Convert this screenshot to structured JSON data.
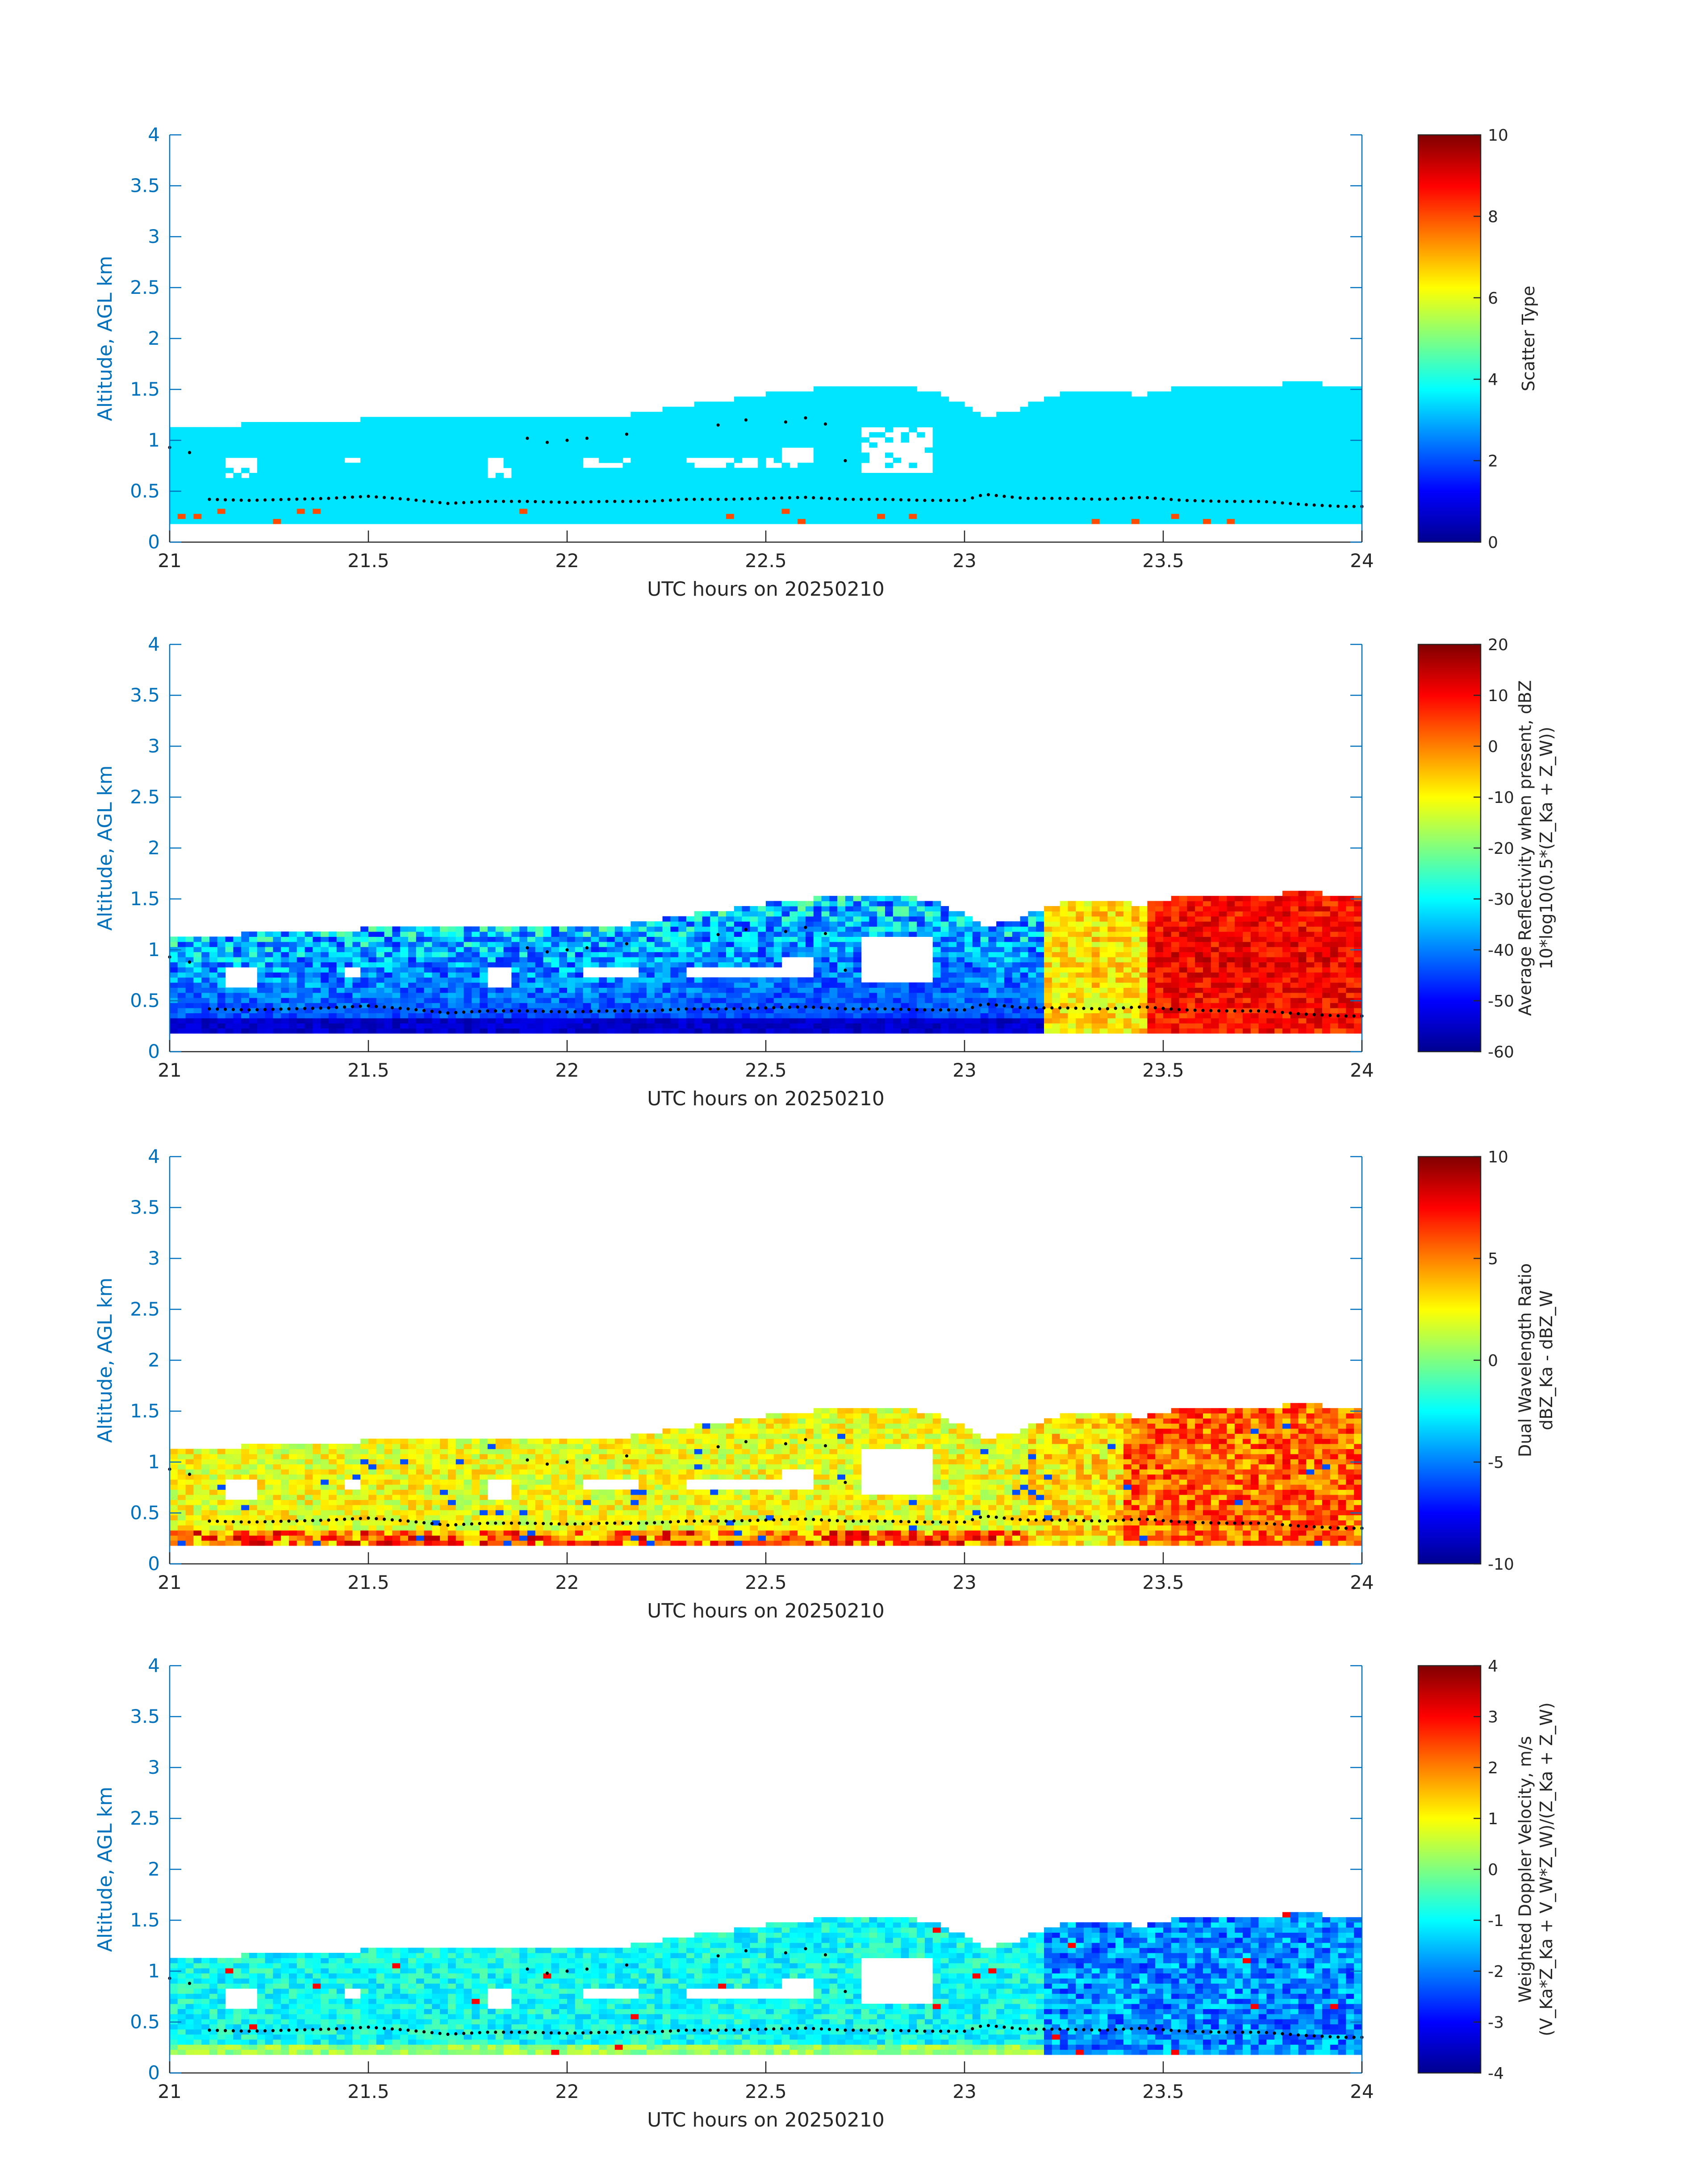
{
  "chart_data": [
    {
      "type": "heatmap",
      "field": "scatter_type",
      "xlabel": "UTC hours on 20250210",
      "ylabel": "Altitude, AGL km",
      "xlim": [
        21,
        24
      ],
      "ylim": [
        0,
        4
      ],
      "xticks": [
        "21",
        "21.5",
        "22",
        "22.5",
        "23",
        "23.5",
        "24"
      ],
      "yticks": [
        "0",
        "0.5",
        "1",
        "1.5",
        "2",
        "2.5",
        "3",
        "3.5",
        "4"
      ],
      "colorbar": {
        "label_lines": [
          "Scatter Type"
        ],
        "range": [
          0,
          10
        ],
        "ticks": [
          "0",
          "2",
          "4",
          "6",
          "8",
          "10"
        ]
      },
      "dominant_value": 3.5
    },
    {
      "type": "heatmap",
      "field": "reflectivity",
      "xlabel": "UTC hours on 20250210",
      "ylabel": "Altitude, AGL km",
      "xlim": [
        21,
        24
      ],
      "ylim": [
        0,
        4
      ],
      "xticks": [
        "21",
        "21.5",
        "22",
        "22.5",
        "23",
        "23.5",
        "24"
      ],
      "yticks": [
        "0",
        "0.5",
        "1",
        "1.5",
        "2",
        "2.5",
        "3",
        "3.5",
        "4"
      ],
      "colorbar": {
        "label_lines": [
          "Average Reflectivity when present, dBZ",
          "10*log10(0.5*(Z_Ka + Z_W))"
        ],
        "range": [
          -60,
          20
        ],
        "ticks": [
          "-60",
          "-50",
          "-40",
          "-30",
          "-20",
          "-10",
          "0",
          "10",
          "20"
        ]
      }
    },
    {
      "type": "heatmap",
      "field": "dual_wavelength_ratio",
      "xlabel": "UTC hours on 20250210",
      "ylabel": "Altitude, AGL km",
      "xlim": [
        21,
        24
      ],
      "ylim": [
        0,
        4
      ],
      "xticks": [
        "21",
        "21.5",
        "22",
        "22.5",
        "23",
        "23.5",
        "24"
      ],
      "yticks": [
        "0",
        "0.5",
        "1",
        "1.5",
        "2",
        "2.5",
        "3",
        "3.5",
        "4"
      ],
      "colorbar": {
        "label_lines": [
          "Dual Wavelength Ratio",
          "dBZ_Ka - dBZ_W"
        ],
        "range": [
          -10,
          10
        ],
        "ticks": [
          "-10",
          "-5",
          "0",
          "5",
          "10"
        ]
      }
    },
    {
      "type": "heatmap",
      "field": "doppler_velocity",
      "xlabel": "UTC hours on 20250210",
      "ylabel": "Altitude, AGL km",
      "xlim": [
        21,
        24
      ],
      "ylim": [
        0,
        4
      ],
      "xticks": [
        "21",
        "21.5",
        "22",
        "22.5",
        "23",
        "23.5",
        "24"
      ],
      "yticks": [
        "0",
        "0.5",
        "1",
        "1.5",
        "2",
        "2.5",
        "3",
        "3.5",
        "4"
      ],
      "colorbar": {
        "label_lines": [
          "Weighted Doppler Velocity, m/s",
          "(V_Ka*Z_Ka + V_W*Z_W)/(Z_Ka + Z_W)"
        ],
        "range": [
          -4,
          4
        ],
        "ticks": [
          "-4",
          "-3",
          "-2",
          "-1",
          "0",
          "1",
          "2",
          "3",
          "4"
        ]
      }
    }
  ],
  "cloud_layer": {
    "top_km": [
      [
        21.0,
        1.12
      ],
      [
        21.12,
        1.12
      ],
      [
        21.25,
        1.14
      ],
      [
        21.4,
        1.16
      ],
      [
        21.55,
        1.2
      ],
      [
        21.7,
        1.22
      ],
      [
        21.85,
        1.22
      ],
      [
        22.0,
        1.2
      ],
      [
        22.15,
        1.22
      ],
      [
        22.3,
        1.32
      ],
      [
        22.45,
        1.4
      ],
      [
        22.55,
        1.46
      ],
      [
        22.7,
        1.5
      ],
      [
        22.85,
        1.5
      ],
      [
        22.95,
        1.42
      ],
      [
        23.05,
        1.2
      ],
      [
        23.15,
        1.3
      ],
      [
        23.25,
        1.45
      ],
      [
        23.35,
        1.45
      ],
      [
        23.45,
        1.42
      ],
      [
        23.55,
        1.5
      ],
      [
        23.7,
        1.5
      ],
      [
        23.85,
        1.55
      ],
      [
        24.0,
        1.5
      ]
    ],
    "bottom_km": 0.18
  },
  "cloud_base_dots": {
    "lower_km": [
      [
        21.0,
        0.52
      ],
      [
        21.1,
        0.42
      ],
      [
        21.2,
        0.41
      ],
      [
        21.3,
        0.42
      ],
      [
        21.4,
        0.43
      ],
      [
        21.5,
        0.45
      ],
      [
        21.6,
        0.42
      ],
      [
        21.7,
        0.38
      ],
      [
        21.8,
        0.4
      ],
      [
        21.9,
        0.4
      ],
      [
        22.0,
        0.39
      ],
      [
        22.1,
        0.4
      ],
      [
        22.2,
        0.4
      ],
      [
        22.3,
        0.42
      ],
      [
        22.4,
        0.42
      ],
      [
        22.5,
        0.43
      ],
      [
        22.6,
        0.44
      ],
      [
        22.7,
        0.42
      ],
      [
        22.8,
        0.42
      ],
      [
        22.9,
        0.41
      ],
      [
        23.0,
        0.41
      ],
      [
        23.05,
        0.47
      ],
      [
        23.15,
        0.43
      ],
      [
        23.25,
        0.43
      ],
      [
        23.35,
        0.42
      ],
      [
        23.45,
        0.44
      ],
      [
        23.55,
        0.41
      ],
      [
        23.65,
        0.4
      ],
      [
        23.75,
        0.4
      ],
      [
        23.85,
        0.37
      ],
      [
        23.95,
        0.35
      ],
      [
        24.0,
        0.35
      ]
    ],
    "upper_km": [
      [
        21.0,
        0.93
      ],
      [
        21.05,
        0.88
      ],
      [
        21.9,
        1.02
      ],
      [
        21.95,
        0.98
      ],
      [
        22.0,
        1.0
      ],
      [
        22.05,
        1.02
      ],
      [
        22.15,
        1.06
      ],
      [
        22.38,
        1.15
      ],
      [
        22.45,
        1.2
      ],
      [
        22.55,
        1.18
      ],
      [
        22.6,
        1.22
      ],
      [
        22.65,
        1.16
      ],
      [
        22.7,
        0.8
      ]
    ]
  }
}
